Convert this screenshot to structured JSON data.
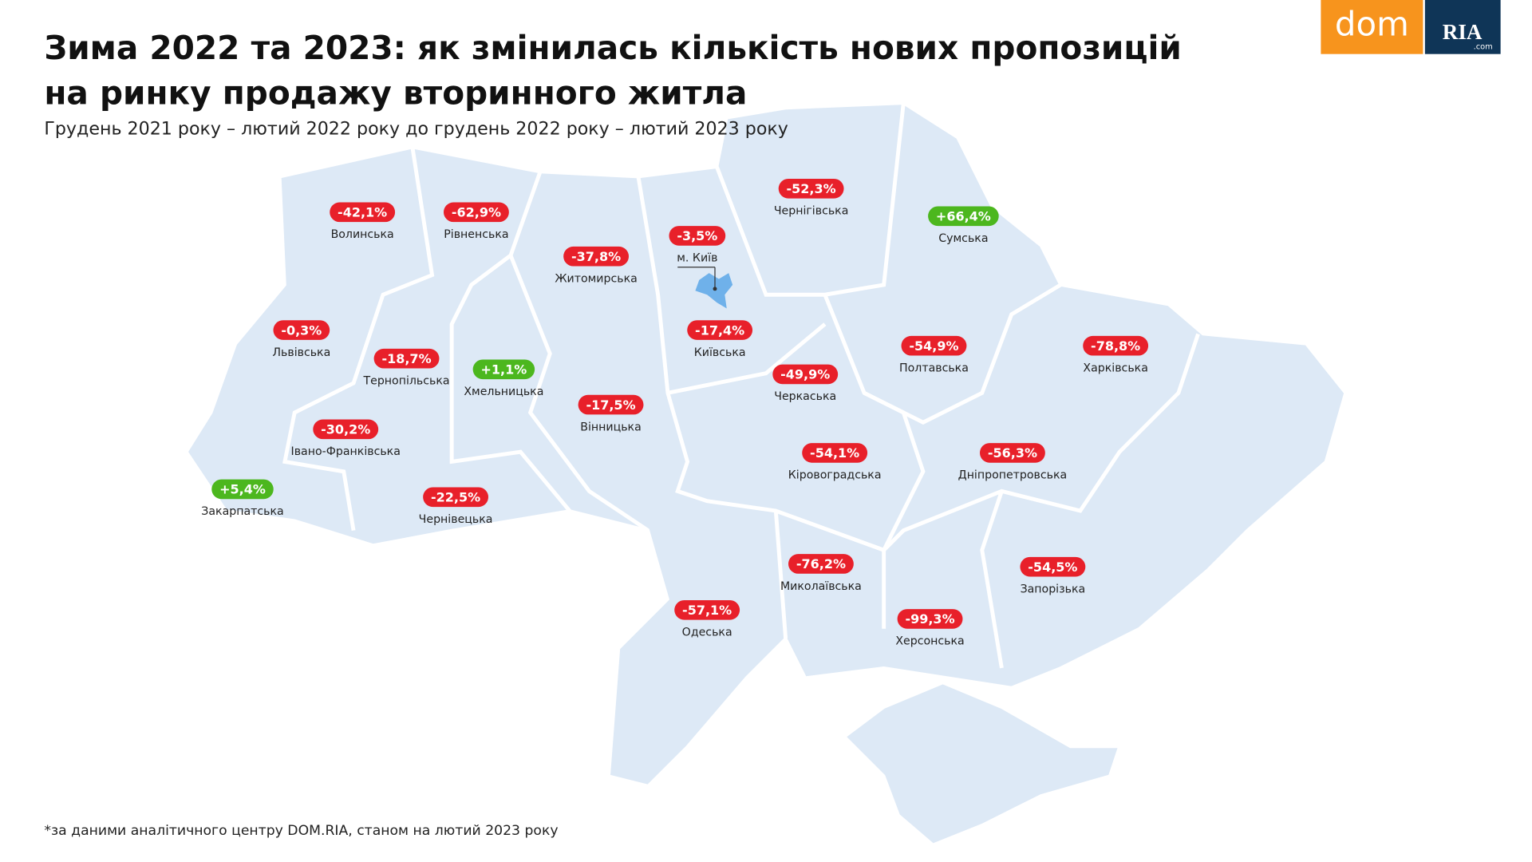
{
  "header": {
    "title_line1": "Зима 2022 та 2023: як змінилась кількість нових пропозицій",
    "title_line2": "на ринку продажу вторинного житла",
    "subtitle": "Грудень 2021 року – лютий 2022 року до грудень 2022 року – лютий 2023 року"
  },
  "logo": {
    "left": "dom",
    "right": "RIA",
    "suffix": ".com"
  },
  "regions": [
    {
      "name": "Волинська",
      "change": "-42,1%"
    },
    {
      "name": "Рівненська",
      "change": "-62,9%"
    },
    {
      "name": "Житомирська",
      "change": "-37,8%"
    },
    {
      "name": "м. Київ",
      "change": "-3,5%"
    },
    {
      "name": "Чернігівська",
      "change": "-52,3%"
    },
    {
      "name": "Сумська",
      "change": "+66,4%"
    },
    {
      "name": "Львівська",
      "change": "-0,3%"
    },
    {
      "name": "Тернопільська",
      "change": "-18,7%"
    },
    {
      "name": "Хмельницька",
      "change": "+1,1%"
    },
    {
      "name": "Київська",
      "change": "-17,4%"
    },
    {
      "name": "Полтавська",
      "change": "-54,9%"
    },
    {
      "name": "Харківська",
      "change": "-78,8%"
    },
    {
      "name": "Черкаська",
      "change": "-49,9%"
    },
    {
      "name": "Вінницька",
      "change": "-17,5%"
    },
    {
      "name": "Івано-Франківська",
      "change": "-30,2%"
    },
    {
      "name": "Закарпатська",
      "change": "+5,4%"
    },
    {
      "name": "Чернівецька",
      "change": "-22,5%"
    },
    {
      "name": "Кіровоградська",
      "change": "-54,1%"
    },
    {
      "name": "Дніпропетровська",
      "change": "-56,3%"
    },
    {
      "name": "Миколаївська",
      "change": "-76,2%"
    },
    {
      "name": "Запорізька",
      "change": "-54,5%"
    },
    {
      "name": "Одеська",
      "change": "-57,1%"
    },
    {
      "name": "Херсонська",
      "change": "-99,3%"
    }
  ],
  "footnote": "*за даними аналітичного центру DOM.RIA, станом на лютий 2023 року"
}
